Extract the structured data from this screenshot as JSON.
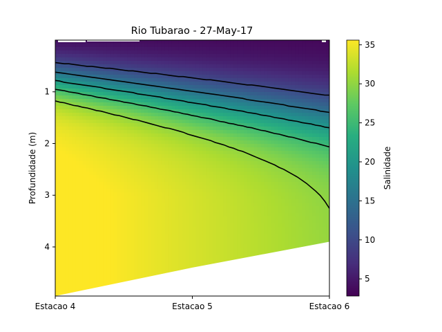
{
  "chart_data": {
    "type": "heatmap",
    "title": "Rio Tubarao - 27-May-17",
    "ylabel": "Profundidade (m)",
    "xlabel": "",
    "x_tick_labels": [
      "Estacao 4",
      "Estacao 5",
      "Estacao 6"
    ],
    "y_ticks": [
      1,
      2,
      3,
      4
    ],
    "ylim": [
      4.95,
      0.0
    ],
    "y_inverted": true,
    "colorbar": {
      "label": "Salinidade",
      "colormap": "viridis",
      "range": [
        2.8,
        35.6
      ],
      "ticks": [
        5,
        10,
        15,
        20,
        25,
        30,
        35
      ]
    },
    "bottom_depth_m": [
      4.95,
      4.4,
      3.9
    ],
    "contour_levels": [
      10,
      15,
      20,
      25,
      30
    ],
    "contour_color": "#000000"
  }
}
